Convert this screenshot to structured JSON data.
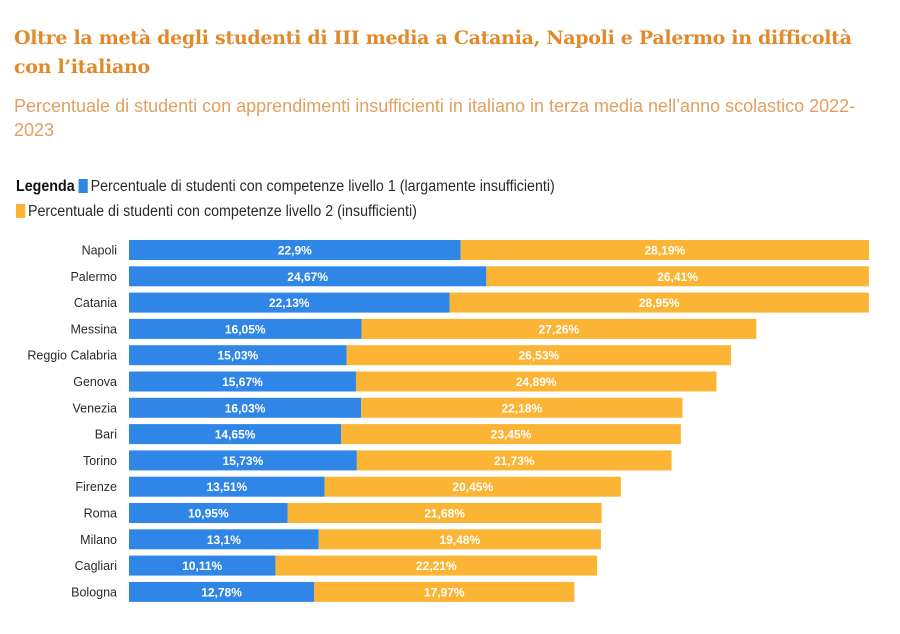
{
  "header": {
    "title": "Oltre la metà degli studenti di III media a Catania, Napoli e Palermo in difficoltà con l’italiano",
    "subtitle": "Percentuale di studenti con apprendimenti insufficienti in italiano in terza media nell’anno scolastico 2022-2023"
  },
  "legend": {
    "label": "Legenda",
    "items": [
      {
        "name": "Percentuale di studenti con competenze livello 1 (largamente insufficienti)",
        "color": "#2f86e6"
      },
      {
        "name": "Percentuale di studenti con competenze livello 2 (insufficienti)",
        "color": "#fbb434"
      }
    ]
  },
  "chart_data": {
    "type": "bar",
    "orientation": "horizontal",
    "stacked": true,
    "title": "Oltre la metà degli studenti di III media a Catania, Napoli e Palermo in difficoltà con l’italiano",
    "subtitle": "Percentuale di studenti con apprendimenti insufficienti in italiano in terza media nell’anno scolastico 2022-2023",
    "xlabel": "",
    "ylabel": "",
    "grid": false,
    "legend_position": "top-left",
    "categories": [
      "Napoli",
      "Palermo",
      "Catania",
      "Messina",
      "Reggio Calabria",
      "Genova",
      "Venezia",
      "Bari",
      "Torino",
      "Firenze",
      "Roma",
      "Milano",
      "Cagliari",
      "Bologna"
    ],
    "series": [
      {
        "name": "Percentuale di studenti con competenze livello 1 (largamente insufficienti)",
        "color": "#2f86e6",
        "values": [
          22.9,
          24.67,
          22.13,
          16.05,
          15.03,
          15.67,
          16.03,
          14.65,
          15.73,
          13.51,
          10.95,
          13.1,
          10.11,
          12.78
        ],
        "labels": [
          "22,9%",
          "24,67%",
          "22,13%",
          "16,05%",
          "15,03%",
          "15,67%",
          "16,03%",
          "14,65%",
          "15,73%",
          "13,51%",
          "10,95%",
          "13,1%",
          "10,11%",
          "12,78%"
        ]
      },
      {
        "name": "Percentuale di studenti con competenze livello 2 (insufficienti)",
        "color": "#fbb434",
        "values": [
          28.19,
          26.41,
          28.95,
          27.26,
          26.53,
          24.89,
          22.18,
          23.45,
          21.73,
          20.45,
          21.68,
          19.48,
          22.21,
          17.97
        ],
        "labels": [
          "28,19%",
          "26,41%",
          "28,95%",
          "27,26%",
          "26,53%",
          "24,89%",
          "22,18%",
          "23,45%",
          "21,73%",
          "20,45%",
          "21,68%",
          "19,48%",
          "22,21%",
          "17,97%"
        ]
      }
    ],
    "xlim": [
      0,
      51.09
    ]
  }
}
